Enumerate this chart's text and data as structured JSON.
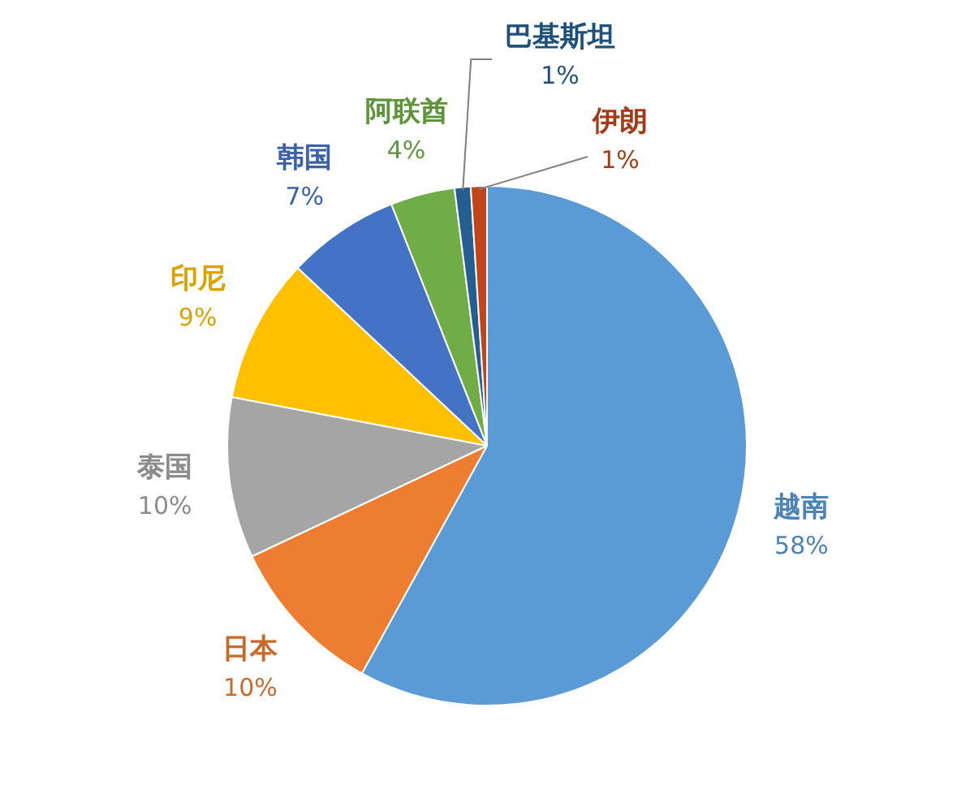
{
  "chart_data": {
    "type": "pie",
    "categories": [
      "越南",
      "日本",
      "泰国",
      "印尼",
      "韩国",
      "阿联酋",
      "巴基斯坦",
      "伊朗"
    ],
    "values": [
      58,
      10,
      10,
      9,
      7,
      4,
      1,
      1
    ],
    "colors": [
      "#5b9bd5",
      "#ed7d31",
      "#a5a5a5",
      "#ffc000",
      "#4472c4",
      "#70ad47",
      "#255e91",
      "#c0451a"
    ],
    "value_labels": [
      "58%",
      "10%",
      "10%",
      "9%",
      "7%",
      "4%",
      "1%",
      "1%"
    ],
    "legend": false
  }
}
